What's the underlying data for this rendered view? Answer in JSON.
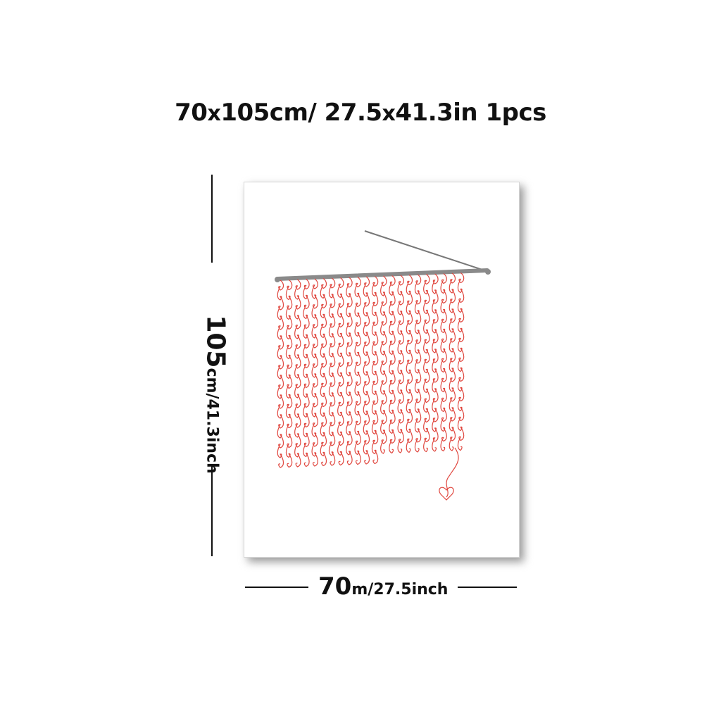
{
  "title": {
    "width_cm": "70",
    "x1": "x",
    "height_cm": "105cm/",
    "width_in": "27.5",
    "x2": "x",
    "height_in": "41.3in",
    "count": "1pcs"
  },
  "height_dim": {
    "value": "105",
    "unit": "cm/41.3inch"
  },
  "width_dim": {
    "value": "70",
    "unit": "m/27.5inch"
  },
  "artwork": {
    "colors": {
      "yarn": "#e0473f",
      "needle": "#8a8a8a"
    }
  }
}
